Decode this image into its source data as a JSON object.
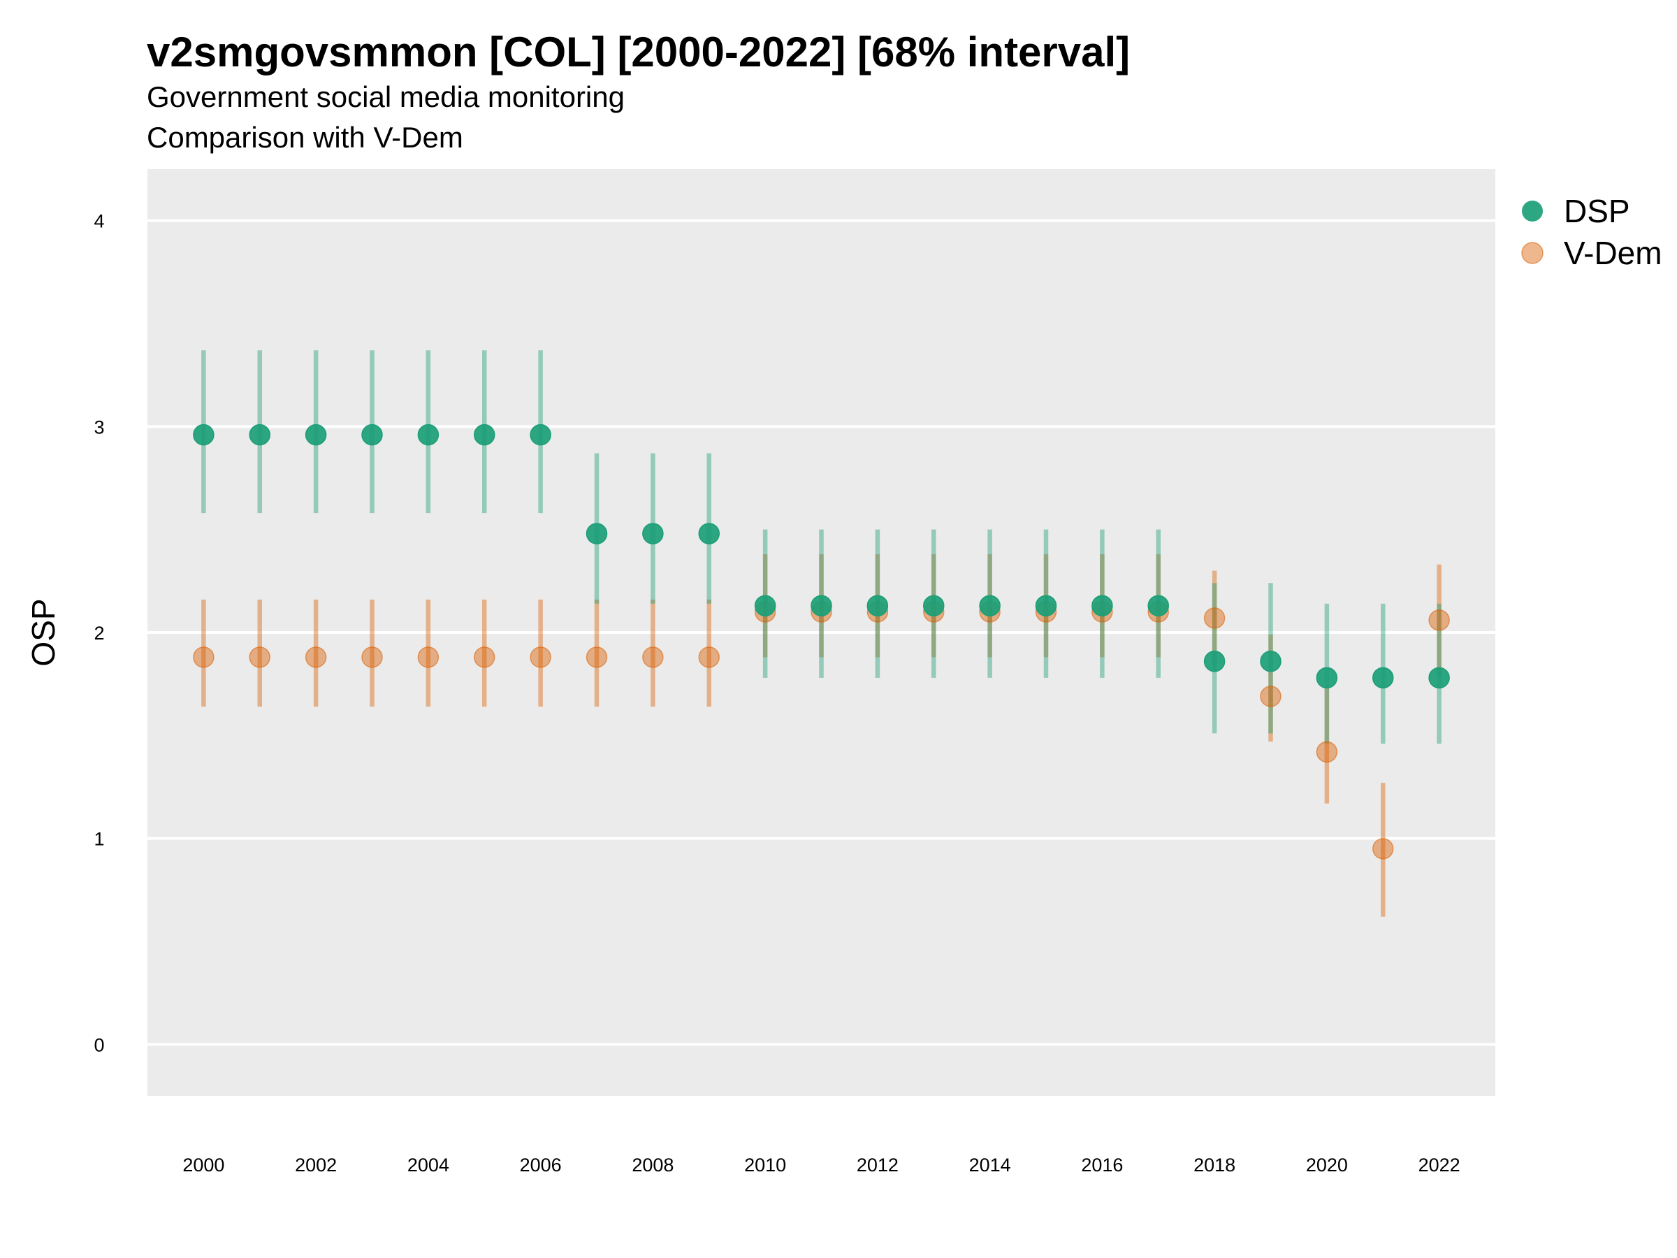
{
  "title": "v2smgovsmmon [COL] [2000-2022] [68% interval]",
  "subtitle_1": "Government social media monitoring",
  "subtitle_2": "Comparison with V-Dem",
  "chart_data": {
    "type": "scatter",
    "ylabel": "OSP",
    "xlabel": "",
    "ylim": [
      -0.25,
      4.25
    ],
    "xlim": [
      1999,
      2023
    ],
    "y_ticks": [
      0,
      1,
      2,
      3,
      4
    ],
    "x_ticks": [
      2000,
      2002,
      2004,
      2006,
      2008,
      2010,
      2012,
      2014,
      2016,
      2018,
      2020,
      2022
    ],
    "grid": true,
    "legend_position": "right",
    "x": [
      2000,
      2001,
      2002,
      2003,
      2004,
      2005,
      2006,
      2007,
      2008,
      2009,
      2010,
      2011,
      2012,
      2013,
      2014,
      2015,
      2016,
      2017,
      2018,
      2019,
      2020,
      2021,
      2022
    ],
    "series": [
      {
        "name": "DSP",
        "color": "#1b9e77",
        "values": [
          2.96,
          2.96,
          2.96,
          2.96,
          2.96,
          2.96,
          2.96,
          2.48,
          2.48,
          2.48,
          2.13,
          2.13,
          2.13,
          2.13,
          2.13,
          2.13,
          2.13,
          2.13,
          1.86,
          1.86,
          1.78,
          1.78,
          1.78
        ],
        "lower": [
          2.58,
          2.58,
          2.58,
          2.58,
          2.58,
          2.58,
          2.58,
          2.14,
          2.14,
          2.14,
          1.78,
          1.78,
          1.78,
          1.78,
          1.78,
          1.78,
          1.78,
          1.78,
          1.51,
          1.51,
          1.46,
          1.46,
          1.46
        ],
        "upper": [
          3.37,
          3.37,
          3.37,
          3.37,
          3.37,
          3.37,
          3.37,
          2.87,
          2.87,
          2.87,
          2.5,
          2.5,
          2.5,
          2.5,
          2.5,
          2.5,
          2.5,
          2.5,
          2.24,
          2.24,
          2.14,
          2.14,
          2.14
        ]
      },
      {
        "name": "V-Dem",
        "color": "#d95f02",
        "values": [
          1.88,
          1.88,
          1.88,
          1.88,
          1.88,
          1.88,
          1.88,
          1.88,
          1.88,
          1.88,
          2.1,
          2.1,
          2.1,
          2.1,
          2.1,
          2.1,
          2.1,
          2.1,
          2.07,
          1.69,
          1.42,
          0.95,
          2.06
        ],
        "lower": [
          1.64,
          1.64,
          1.64,
          1.64,
          1.64,
          1.64,
          1.64,
          1.64,
          1.64,
          1.64,
          1.88,
          1.88,
          1.88,
          1.88,
          1.88,
          1.88,
          1.88,
          1.88,
          1.85,
          1.47,
          1.17,
          0.62,
          1.79
        ],
        "upper": [
          2.16,
          2.16,
          2.16,
          2.16,
          2.16,
          2.16,
          2.16,
          2.16,
          2.16,
          2.16,
          2.38,
          2.38,
          2.38,
          2.38,
          2.38,
          2.38,
          2.38,
          2.38,
          2.3,
          1.99,
          1.74,
          1.27,
          2.33
        ]
      }
    ]
  }
}
